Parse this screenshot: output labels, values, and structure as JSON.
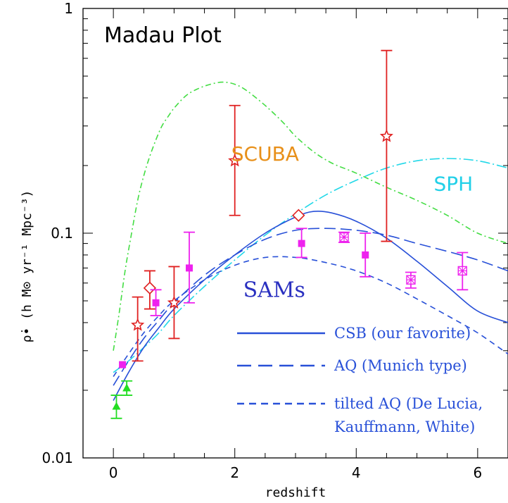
{
  "chart_data": {
    "type": "line",
    "title": "Madau Plot",
    "xlabel": "redshift",
    "ylabel": "ρ̇• (h M⊙ yr⁻¹ Mpc⁻³)",
    "xlim": [
      -0.5,
      6.5
    ],
    "ylim": [
      0.01,
      1
    ],
    "yscale": "log",
    "x_ticks": [
      0,
      2,
      4,
      6
    ],
    "x_tick_labels": [
      "0",
      "2",
      "4",
      "6"
    ],
    "y_ticks": [
      0.01,
      0.1,
      1
    ],
    "y_tick_labels": [
      "0.01",
      "0.1",
      "1"
    ],
    "annotations": [
      {
        "text": "SCUBA",
        "x": 2.5,
        "y": 0.21,
        "color": "#e8901a"
      },
      {
        "text": "SPH",
        "x": 5.6,
        "y": 0.155,
        "color": "#22d0e8"
      },
      {
        "text": "SAMs",
        "x": 2.65,
        "y": 0.052,
        "color": "#2a30c0"
      }
    ],
    "legend": {
      "placement": "bottom-right",
      "entries": [
        {
          "label": "CSB (our favorite)",
          "style": "solid",
          "color": "#2850d8"
        },
        {
          "label": "AQ (Munich type)",
          "style": "long-dash",
          "color": "#2850d8"
        },
        {
          "label_lines": [
            "tilted AQ (De Lucia,",
            "Kauffmann, White)"
          ],
          "style": "short-dash",
          "color": "#2850d8"
        }
      ]
    },
    "series": [
      {
        "name": "SCUBA",
        "style": "dash-dot",
        "color": "#44dd44",
        "x": [
          0,
          0.1,
          0.2,
          0.3,
          0.4,
          0.5,
          0.6,
          0.7,
          0.8,
          0.9,
          1.0,
          1.2,
          1.4,
          1.6,
          1.8,
          2.0,
          2.2,
          2.5,
          2.8,
          3.0,
          3.3,
          3.6,
          4.0,
          4.5,
          5.0,
          5.5,
          6.0,
          6.5
        ],
        "y": [
          0.03,
          0.045,
          0.07,
          0.1,
          0.14,
          0.18,
          0.22,
          0.26,
          0.3,
          0.33,
          0.36,
          0.41,
          0.44,
          0.46,
          0.47,
          0.46,
          0.43,
          0.37,
          0.31,
          0.27,
          0.23,
          0.205,
          0.185,
          0.16,
          0.14,
          0.12,
          0.1,
          0.09
        ]
      },
      {
        "name": "SPH",
        "style": "long-dash-dot",
        "color": "#22d8e8",
        "x": [
          0,
          0.25,
          0.5,
          0.75,
          1.0,
          1.5,
          2.0,
          2.5,
          3.0,
          3.5,
          4.0,
          4.5,
          5.0,
          5.5,
          6.0,
          6.5
        ],
        "y": [
          0.024,
          0.027,
          0.031,
          0.036,
          0.043,
          0.058,
          0.076,
          0.098,
          0.122,
          0.148,
          0.172,
          0.195,
          0.21,
          0.215,
          0.21,
          0.195
        ]
      },
      {
        "name": "CSB (our favorite)",
        "style": "solid",
        "color": "#2850d8",
        "x": [
          0,
          0.25,
          0.5,
          0.75,
          1.0,
          1.5,
          2.0,
          2.5,
          3.0,
          3.3,
          3.6,
          4.0,
          4.5,
          5.0,
          5.5,
          6.0,
          6.5
        ],
        "y": [
          0.018,
          0.024,
          0.031,
          0.038,
          0.046,
          0.062,
          0.08,
          0.1,
          0.118,
          0.125,
          0.123,
          0.113,
          0.095,
          0.075,
          0.058,
          0.045,
          0.04
        ]
      },
      {
        "name": "AQ (Munich type)",
        "style": "long-dash",
        "color": "#2850d8",
        "x": [
          0,
          0.25,
          0.5,
          0.75,
          1.0,
          1.5,
          2.0,
          2.5,
          3.0,
          3.5,
          4.0,
          4.5,
          5.0,
          5.5,
          6.0,
          6.5
        ],
        "y": [
          0.021,
          0.027,
          0.034,
          0.041,
          0.049,
          0.065,
          0.08,
          0.094,
          0.103,
          0.105,
          0.103,
          0.098,
          0.09,
          0.083,
          0.076,
          0.068
        ]
      },
      {
        "name": "tilted AQ (De Lucia, Kauffmann, White)",
        "style": "short-dash",
        "color": "#2850d8",
        "x": [
          0,
          0.25,
          0.5,
          0.75,
          1.0,
          1.5,
          2.0,
          2.5,
          3.0,
          3.5,
          4.0,
          4.5,
          5.0,
          5.5,
          6.0,
          6.5
        ],
        "y": [
          0.023,
          0.029,
          0.036,
          0.043,
          0.05,
          0.062,
          0.072,
          0.078,
          0.078,
          0.074,
          0.068,
          0.06,
          0.051,
          0.043,
          0.036,
          0.029
        ]
      }
    ],
    "points": [
      {
        "group": "red-stars",
        "marker": "star",
        "color": "#e02020",
        "x": 0.4,
        "y": 0.039,
        "y_low": 0.027,
        "y_high": 0.052
      },
      {
        "group": "red-stars",
        "marker": "star",
        "color": "#e02020",
        "x": 1.0,
        "y": 0.049,
        "y_low": 0.034,
        "y_high": 0.071
      },
      {
        "group": "red-stars",
        "marker": "star",
        "color": "#e02020",
        "x": 2.0,
        "y": 0.21,
        "y_low": 0.12,
        "y_high": 0.37
      },
      {
        "group": "red-stars",
        "marker": "star",
        "color": "#e02020",
        "x": 4.5,
        "y": 0.27,
        "y_low": 0.092,
        "y_high": 0.65
      },
      {
        "group": "red-diamonds",
        "marker": "diamond",
        "color": "#e02020",
        "x": 0.6,
        "y": 0.057,
        "y_low": 0.046,
        "y_high": 0.068
      },
      {
        "group": "red-diamonds",
        "marker": "diamond",
        "color": "#e02020",
        "x": 3.05,
        "y": 0.12
      },
      {
        "group": "magenta-squares",
        "marker": "square",
        "color": "#ee22ee",
        "x": 0.15,
        "y": 0.026
      },
      {
        "group": "magenta-squares",
        "marker": "square",
        "color": "#ee22ee",
        "x": 0.7,
        "y": 0.049,
        "y_low": 0.043,
        "y_high": 0.056
      },
      {
        "group": "magenta-squares",
        "marker": "square",
        "color": "#ee22ee",
        "x": 1.25,
        "y": 0.07,
        "y_low": 0.049,
        "y_high": 0.101
      },
      {
        "group": "magenta-squares",
        "marker": "square",
        "color": "#ee22ee",
        "x": 3.1,
        "y": 0.09,
        "y_low": 0.078,
        "y_high": 0.105
      },
      {
        "group": "magenta-squares",
        "marker": "square",
        "color": "#ee22ee",
        "x": 4.15,
        "y": 0.08,
        "y_low": 0.064,
        "y_high": 0.1
      },
      {
        "group": "magenta-boxstars",
        "marker": "boxstar",
        "color": "#ee22ee",
        "x": 3.8,
        "y": 0.096,
        "y_low": 0.091,
        "y_high": 0.101
      },
      {
        "group": "magenta-boxstars",
        "marker": "boxstar",
        "color": "#ee22ee",
        "x": 4.9,
        "y": 0.062,
        "y_low": 0.057,
        "y_high": 0.067
      },
      {
        "group": "magenta-boxstars",
        "marker": "boxstar",
        "color": "#ee22ee",
        "x": 5.75,
        "y": 0.068,
        "y_low": 0.056,
        "y_high": 0.082
      },
      {
        "group": "green-triangles",
        "marker": "triangle",
        "color": "#22dd22",
        "x": 0.05,
        "y": 0.017,
        "y_low": 0.015,
        "y_high": 0.019
      },
      {
        "group": "green-triangles",
        "marker": "triangle",
        "color": "#22dd22",
        "x": 0.22,
        "y": 0.0205,
        "y_low": 0.019,
        "y_high": 0.022
      }
    ]
  }
}
